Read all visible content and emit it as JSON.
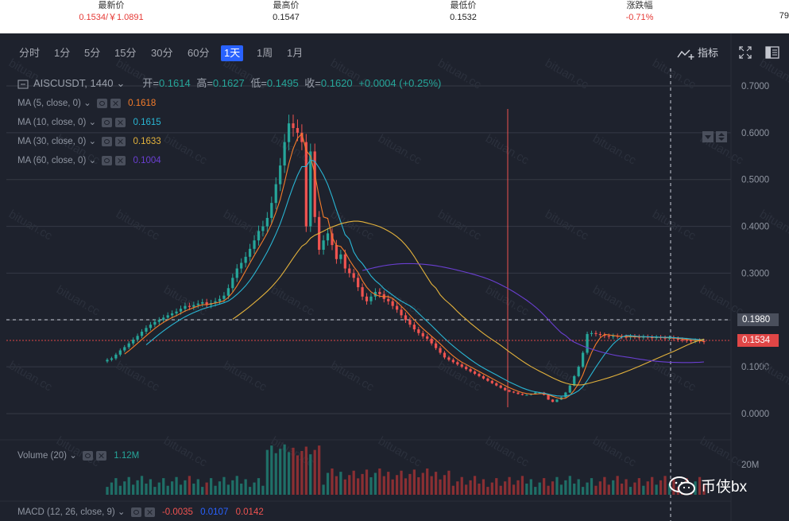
{
  "ticker": {
    "items": [
      {
        "label": "最新价",
        "value": "0.1534/￥1.0891",
        "tone": "up"
      },
      {
        "label": "最高价",
        "value": "0.1547",
        "tone": "plain"
      },
      {
        "label": "最低价",
        "value": "0.1532",
        "tone": "plain"
      },
      {
        "label": "涨跌幅",
        "value": "-0.71%",
        "tone": "up"
      }
    ],
    "cut_value": "79"
  },
  "toolbar": {
    "timeframes": [
      "分时",
      "1分",
      "5分",
      "15分",
      "30分",
      "60分",
      "1天",
      "1周",
      "1月"
    ],
    "active_timeframe": "1天",
    "indicators_label": "指标"
  },
  "symbol": {
    "name": "AISCUSDT, 1440",
    "open_label": "开=",
    "open": "0.1614",
    "high_label": "高=",
    "high": "0.1627",
    "low_label": "低=",
    "low": "0.1495",
    "close_label": "收=",
    "close": "0.1620",
    "change": "+0.0004 (+0.25%)"
  },
  "moving_averages": [
    {
      "label": "MA (5, close, 0)",
      "value": "0.1618",
      "color": "#f57c2a"
    },
    {
      "label": "MA (10, close, 0)",
      "value": "0.1615",
      "color": "#29b6d4"
    },
    {
      "label": "MA (30, close, 0)",
      "value": "0.1633",
      "color": "#e3b23c"
    },
    {
      "label": "MA (60, close, 0)",
      "value": "0.1004",
      "color": "#6a3fd1"
    }
  ],
  "price_axis": {
    "ticks": [
      "0.7000",
      "0.6000",
      "0.5000",
      "0.4000",
      "0.3000",
      "0.1000",
      "0.0000"
    ],
    "crosshair_price": "0.1980",
    "last_price": "0.1534"
  },
  "volume": {
    "label": "Volume (20)",
    "value": "1.12M",
    "axis_label": "20M"
  },
  "macd": {
    "label": "MACD (12, 26, close, 9)",
    "v1": "-0.0035",
    "v2": "0.0107",
    "v3": "0.0142"
  },
  "watermark": {
    "text": "bituan.cc",
    "brand": "币侠bx"
  },
  "colors": {
    "up": "#26a69a",
    "down": "#ef5350",
    "background": "#1e222d",
    "accent": "#2962ff"
  },
  "chart_data": {
    "type": "candlestick",
    "series_name": "AISCUSDT, 1440",
    "y_unit": "USDT",
    "ylim": [
      0,
      0.7
    ],
    "closes": [
      0.115,
      0.118,
      0.126,
      0.135,
      0.142,
      0.15,
      0.158,
      0.166,
      0.175,
      0.183,
      0.19,
      0.196,
      0.2,
      0.205,
      0.21,
      0.214,
      0.218,
      0.224,
      0.23,
      0.228,
      0.232,
      0.235,
      0.238,
      0.232,
      0.236,
      0.24,
      0.245,
      0.252,
      0.268,
      0.29,
      0.31,
      0.322,
      0.335,
      0.352,
      0.37,
      0.39,
      0.4,
      0.418,
      0.45,
      0.49,
      0.53,
      0.58,
      0.62,
      0.61,
      0.6,
      0.58,
      0.4,
      0.56,
      0.42,
      0.35,
      0.37,
      0.385,
      0.36,
      0.33,
      0.34,
      0.31,
      0.3,
      0.29,
      0.27,
      0.25,
      0.24,
      0.25,
      0.26,
      0.255,
      0.245,
      0.24,
      0.23,
      0.222,
      0.21,
      0.2,
      0.19,
      0.18,
      0.172,
      0.165,
      0.16,
      0.15,
      0.14,
      0.13,
      0.12,
      0.115,
      0.11,
      0.105,
      0.1,
      0.095,
      0.09,
      0.085,
      0.08,
      0.075,
      0.07,
      0.065,
      0.06,
      0.055,
      0.05,
      0.047,
      0.045,
      0.042,
      0.04,
      0.04,
      0.042,
      0.045,
      0.045,
      0.04,
      0.03,
      0.025,
      0.03,
      0.035,
      0.045,
      0.06,
      0.08,
      0.1,
      0.13,
      0.17,
      0.172,
      0.17,
      0.168,
      0.166,
      0.164,
      0.166,
      0.165,
      0.164,
      0.163,
      0.165,
      0.164,
      0.163,
      0.164,
      0.163,
      0.162,
      0.163,
      0.162,
      0.161,
      0.162,
      0.16,
      0.158,
      0.157,
      0.156,
      0.155,
      0.156,
      0.155,
      0.153
    ]
  }
}
